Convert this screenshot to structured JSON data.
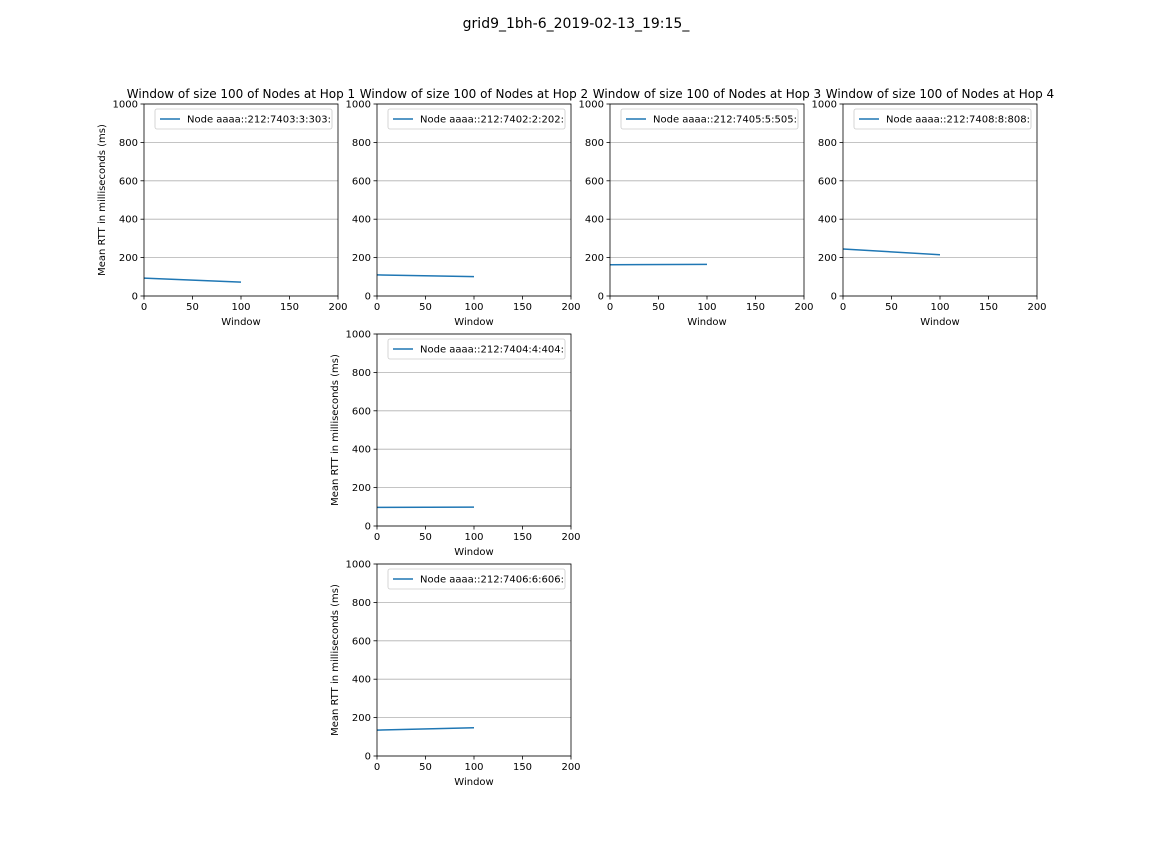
{
  "suptitle": "grid9_1bh-6_2019-02-13_19:15_",
  "colors": {
    "series": "#1f77b4",
    "grid": "#b0b0b0",
    "axes": "#000000",
    "legend_border": "#cccccc"
  },
  "chart_data": [
    {
      "type": "line",
      "title": "Window of size 100 of Nodes at Hop 1",
      "xlabel": "Window",
      "ylabel": "Mean RTT in milliseconds (ms)",
      "xlim": [
        0,
        200
      ],
      "ylim": [
        0,
        1000
      ],
      "xticks": [
        0,
        50,
        100,
        150,
        200
      ],
      "yticks": [
        0,
        200,
        400,
        600,
        800,
        1000
      ],
      "grid": "y",
      "legend_loc": "upper right",
      "series": [
        {
          "name": "Node aaaa::212:7403:3:303:",
          "x": [
            0,
            100
          ],
          "y": [
            93,
            72
          ]
        }
      ]
    },
    {
      "type": "line",
      "title": "Window of size 100 of Nodes at Hop 2",
      "xlabel": "Window",
      "ylabel": "",
      "xlim": [
        0,
        200
      ],
      "ylim": [
        0,
        1000
      ],
      "xticks": [
        0,
        50,
        100,
        150,
        200
      ],
      "yticks": [
        0,
        200,
        400,
        600,
        800,
        1000
      ],
      "grid": "y",
      "legend_loc": "upper right",
      "series": [
        {
          "name": "Node aaaa::212:7402:2:202:",
          "x": [
            0,
            100
          ],
          "y": [
            110,
            101
          ]
        }
      ]
    },
    {
      "type": "line",
      "title": "Window of size 100 of Nodes at Hop 3",
      "xlabel": "Window",
      "ylabel": "",
      "xlim": [
        0,
        200
      ],
      "ylim": [
        0,
        1000
      ],
      "xticks": [
        0,
        50,
        100,
        150,
        200
      ],
      "yticks": [
        0,
        200,
        400,
        600,
        800,
        1000
      ],
      "grid": "y",
      "legend_loc": "upper right",
      "series": [
        {
          "name": "Node aaaa::212:7405:5:505:",
          "x": [
            0,
            100
          ],
          "y": [
            163,
            165
          ]
        }
      ]
    },
    {
      "type": "line",
      "title": "Window of size 100 of Nodes at Hop 4",
      "xlabel": "Window",
      "ylabel": "",
      "xlim": [
        0,
        200
      ],
      "ylim": [
        0,
        1000
      ],
      "xticks": [
        0,
        50,
        100,
        150,
        200
      ],
      "yticks": [
        0,
        200,
        400,
        600,
        800,
        1000
      ],
      "grid": "y",
      "legend_loc": "upper right",
      "series": [
        {
          "name": "Node aaaa::212:7408:8:808:",
          "x": [
            0,
            100
          ],
          "y": [
            245,
            215
          ]
        }
      ]
    },
    {
      "type": "line",
      "title": "",
      "xlabel": "Window",
      "ylabel": "Mean RTT in milliseconds (ms)",
      "xlim": [
        0,
        200
      ],
      "ylim": [
        0,
        1000
      ],
      "xticks": [
        0,
        50,
        100,
        150,
        200
      ],
      "yticks": [
        0,
        200,
        400,
        600,
        800,
        1000
      ],
      "grid": "y",
      "legend_loc": "upper right",
      "series": [
        {
          "name": "Node aaaa::212:7404:4:404:",
          "x": [
            0,
            100
          ],
          "y": [
            97,
            98
          ]
        }
      ]
    },
    {
      "type": "line",
      "title": "",
      "xlabel": "Window",
      "ylabel": "Mean RTT in milliseconds (ms)",
      "xlim": [
        0,
        200
      ],
      "ylim": [
        0,
        1000
      ],
      "xticks": [
        0,
        50,
        100,
        150,
        200
      ],
      "yticks": [
        0,
        200,
        400,
        600,
        800,
        1000
      ],
      "grid": "y",
      "legend_loc": "upper right",
      "series": [
        {
          "name": "Node aaaa::212:7406:6:606:",
          "x": [
            0,
            100
          ],
          "y": [
            135,
            147
          ]
        }
      ]
    }
  ]
}
